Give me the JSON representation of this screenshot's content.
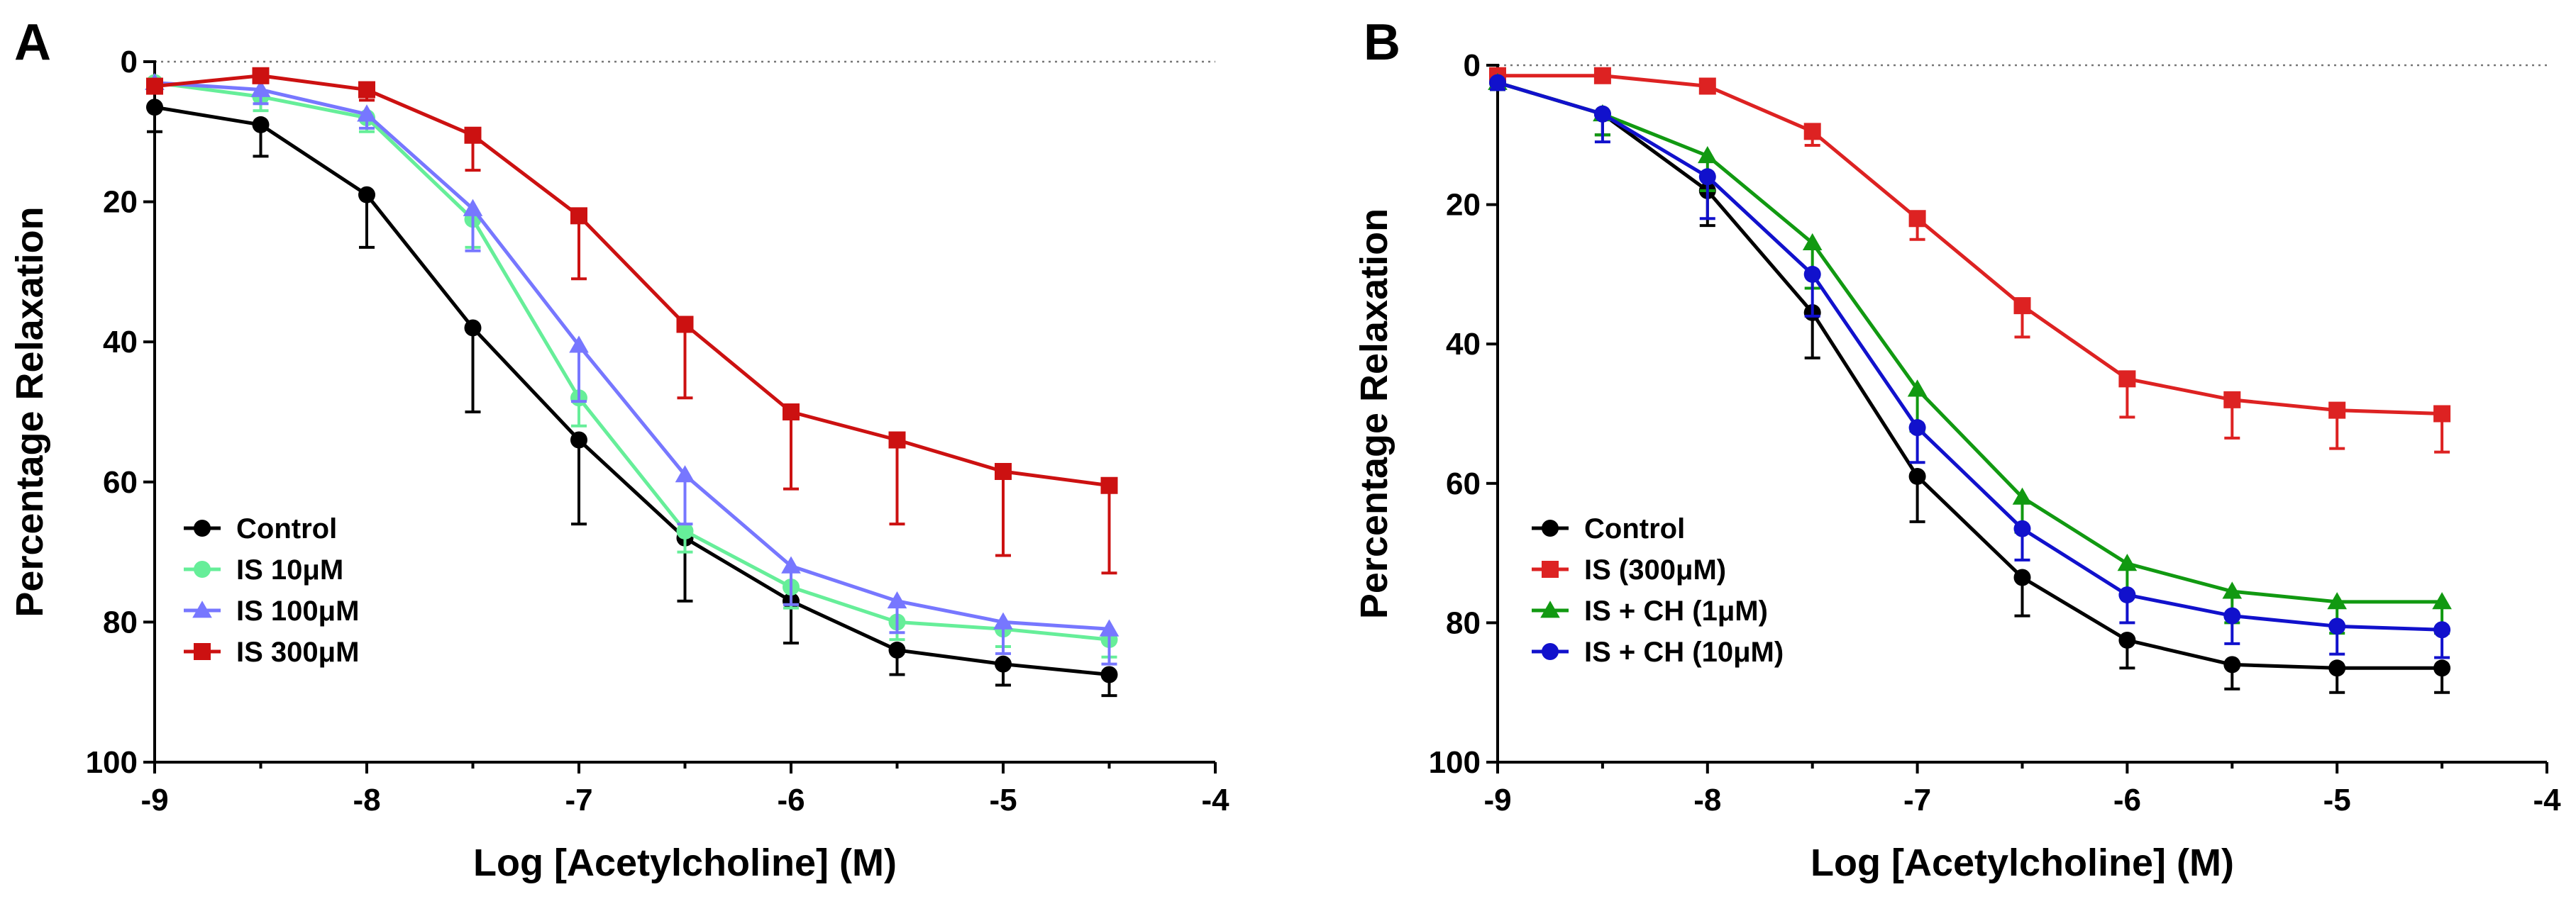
{
  "chart_data": [
    {
      "type": "line",
      "panel": "A",
      "xlabel": "Log [Acetylcholine] (M)",
      "ylabel": "Percentage Relaxation",
      "xlim": [
        -9,
        -4
      ],
      "ylim": [
        0,
        100
      ],
      "y_inverted": true,
      "x_ticks": [
        -9,
        -8,
        -7,
        -6,
        -5,
        -4
      ],
      "y_ticks": [
        0,
        20,
        40,
        60,
        80,
        100
      ],
      "reference_line": 0,
      "legend_position": "bottom-left",
      "x": [
        -9,
        -8.5,
        -8,
        -7.5,
        -7,
        -6.5,
        -6,
        -5.5,
        -5,
        -4.5
      ],
      "series": [
        {
          "name": "Control",
          "color": "#000000",
          "marker": "circle",
          "values": [
            6.5,
            9,
            19,
            38,
            54,
            68,
            77,
            84,
            86,
            87.5
          ],
          "errors": [
            3.5,
            4.5,
            7.5,
            12,
            12,
            9,
            6,
            3.5,
            3,
            3
          ]
        },
        {
          "name": "IS 10μM",
          "color": "#66EE99",
          "marker": "circle",
          "values": [
            3,
            5,
            8,
            22.5,
            48,
            67,
            75,
            80,
            81,
            82.5
          ],
          "errors": [
            1,
            2,
            2,
            4,
            4,
            3,
            3,
            2.5,
            2.5,
            2.5
          ]
        },
        {
          "name": "IS 100μM",
          "color": "#7777FF",
          "marker": "triangle",
          "values": [
            3,
            4,
            7.5,
            21,
            40.5,
            59,
            72,
            77,
            80,
            81
          ],
          "errors": [
            1,
            2,
            2,
            6,
            8,
            7,
            5.5,
            4.5,
            4.5,
            5
          ]
        },
        {
          "name": "IS 300μM",
          "color": "#CC1111",
          "marker": "square",
          "values": [
            3.5,
            2,
            4,
            10.5,
            22,
            37.5,
            50,
            54,
            58.5,
            60.5
          ],
          "errors": [
            1,
            1,
            1.5,
            5,
            9,
            10.5,
            11,
            12,
            12,
            12.5
          ]
        }
      ]
    },
    {
      "type": "line",
      "panel": "B",
      "xlabel": "Log [Acetylcholine] (M)",
      "ylabel": "Percentage Relaxation",
      "xlim": [
        -9,
        -4
      ],
      "ylim": [
        0,
        100
      ],
      "y_inverted": true,
      "x_ticks": [
        -9,
        -8,
        -7,
        -6,
        -5,
        -4
      ],
      "y_ticks": [
        0,
        20,
        40,
        60,
        80,
        100
      ],
      "reference_line": 0,
      "legend_position": "bottom-left",
      "x": [
        -9,
        -8.5,
        -8,
        -7.5,
        -7,
        -6.5,
        -6,
        -5.5,
        -5,
        -4.5
      ],
      "series": [
        {
          "name": "Control",
          "color": "#000000",
          "marker": "circle",
          "values": [
            2.5,
            7,
            18,
            35.5,
            59,
            73.5,
            82.5,
            86,
            86.5,
            86.5
          ],
          "errors": [
            1,
            3,
            5,
            6.5,
            6.5,
            5.5,
            4,
            3.5,
            3.5,
            3.5
          ]
        },
        {
          "name": "IS (300μM)",
          "color": "#DD2222",
          "marker": "square",
          "values": [
            1.5,
            1.5,
            3,
            9.5,
            22,
            34.5,
            45,
            48,
            49.5,
            50
          ],
          "errors": [
            0.5,
            0.5,
            1,
            2,
            3,
            4.5,
            5.5,
            5.5,
            5.5,
            5.5
          ]
        },
        {
          "name": "IS + CH (1μM)",
          "color": "#119911",
          "marker": "triangle",
          "values": [
            2.5,
            7,
            13,
            25.5,
            46.5,
            62,
            71.5,
            75.5,
            77,
            77
          ],
          "errors": [
            1,
            3,
            5,
            6.5,
            6,
            5,
            4.5,
            4.5,
            4.5,
            4.5
          ]
        },
        {
          "name": "IS + CH (10μM)",
          "color": "#1111CC",
          "marker": "circle",
          "values": [
            2.5,
            7,
            16,
            30,
            52,
            66.5,
            76,
            79,
            80.5,
            81
          ],
          "errors": [
            1,
            4,
            6,
            6,
            5,
            4.5,
            4,
            4,
            4,
            4
          ]
        }
      ]
    }
  ]
}
